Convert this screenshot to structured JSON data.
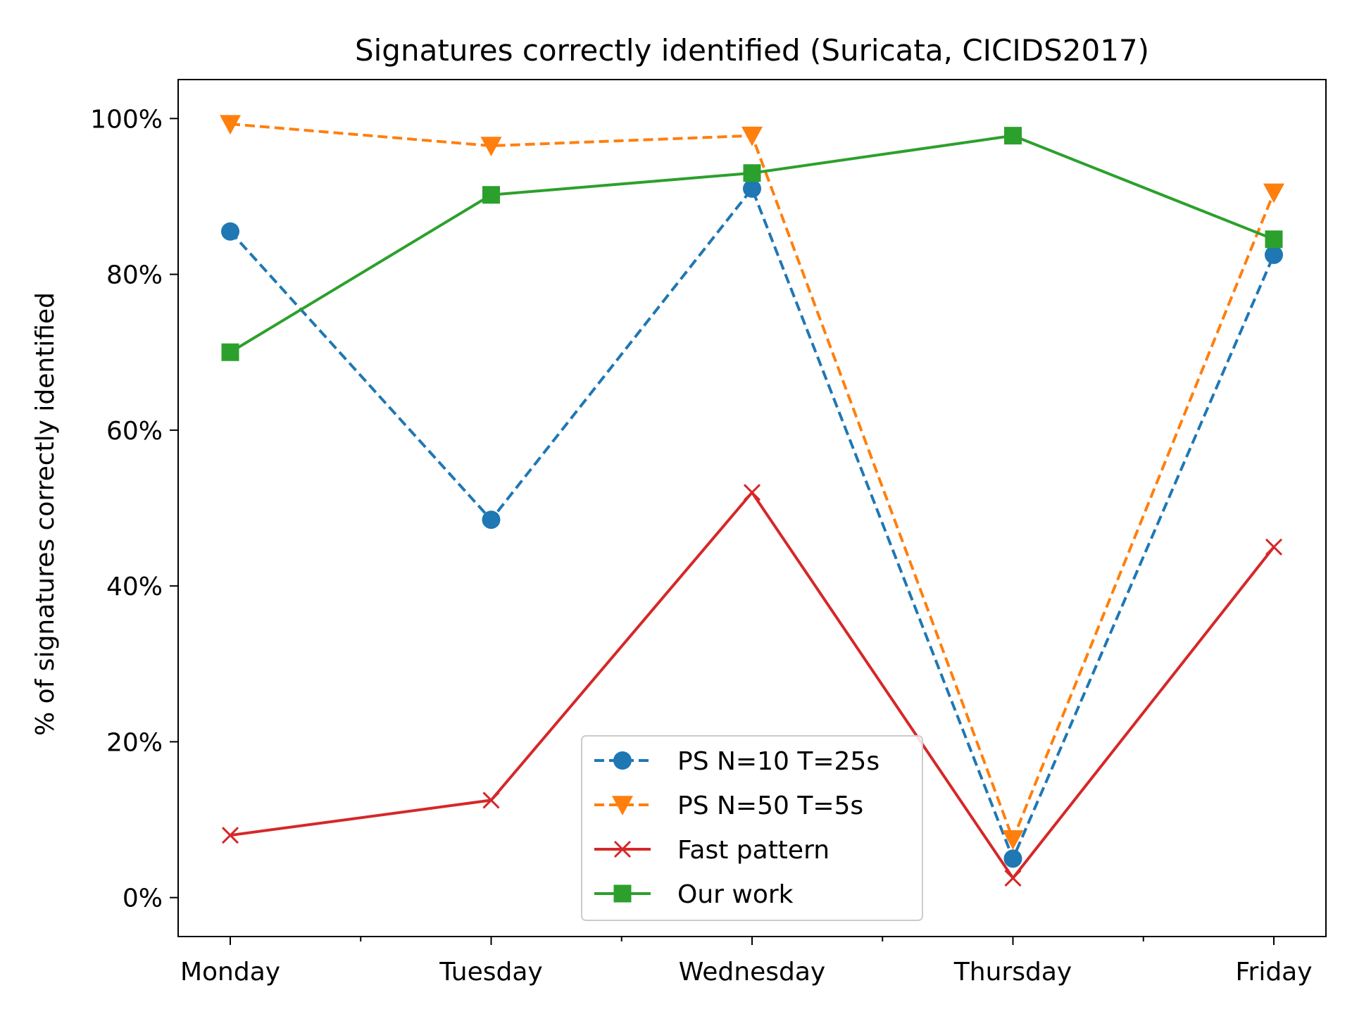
{
  "chart_data": {
    "type": "line",
    "title": "Signatures correctly identified (Suricata, CICIDS2017)",
    "xlabel": "",
    "ylabel": "% of signatures correctly identified",
    "categories": [
      "Monday",
      "Tuesday",
      "Wednesday",
      "Thursday",
      "Friday"
    ],
    "ylim": [
      -5,
      105
    ],
    "yticks": [
      0,
      20,
      40,
      60,
      80,
      100
    ],
    "ytick_labels": [
      "0%",
      "20%",
      "40%",
      "60%",
      "80%",
      "100%"
    ],
    "grid": false,
    "legend_position": "bottom-center",
    "series": [
      {
        "name": "PS N=10 T=25s",
        "values": [
          85.5,
          48.5,
          91,
          5,
          82.5
        ],
        "color": "#1f77b4",
        "linestyle": "dashed",
        "marker": "circle"
      },
      {
        "name": "PS N=50 T=5s",
        "values": [
          99.3,
          96.5,
          97.8,
          7.5,
          90.5
        ],
        "color": "#ff7f0e",
        "linestyle": "dashed",
        "marker": "triangle-down"
      },
      {
        "name": "Fast pattern",
        "values": [
          8,
          12.5,
          52,
          2.5,
          45
        ],
        "color": "#d62728",
        "linestyle": "solid",
        "marker": "x"
      },
      {
        "name": "Our work",
        "values": [
          70,
          90.2,
          93,
          97.8,
          84.5
        ],
        "color": "#2ca02c",
        "linestyle": "solid",
        "marker": "square"
      }
    ]
  }
}
